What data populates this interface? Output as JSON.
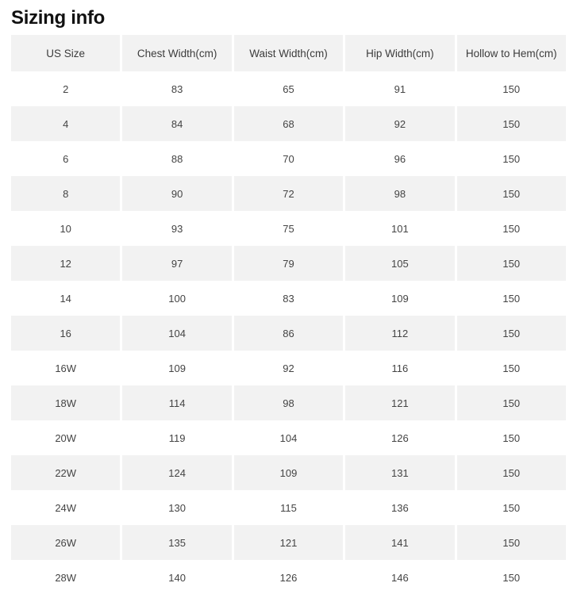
{
  "page": {
    "title": "Sizing info"
  },
  "colors": {
    "stripe_bg": "#f2f2f2",
    "page_bg": "#ffffff",
    "text": "#444444",
    "title": "#111111"
  },
  "table": {
    "columns": [
      "US Size",
      "Chest Width(cm)",
      "Waist Width(cm)",
      "Hip Width(cm)",
      "Hollow to Hem(cm)"
    ],
    "rows": [
      [
        "2",
        "83",
        "65",
        "91",
        "150"
      ],
      [
        "4",
        "84",
        "68",
        "92",
        "150"
      ],
      [
        "6",
        "88",
        "70",
        "96",
        "150"
      ],
      [
        "8",
        "90",
        "72",
        "98",
        "150"
      ],
      [
        "10",
        "93",
        "75",
        "101",
        "150"
      ],
      [
        "12",
        "97",
        "79",
        "105",
        "150"
      ],
      [
        "14",
        "100",
        "83",
        "109",
        "150"
      ],
      [
        "16",
        "104",
        "86",
        "112",
        "150"
      ],
      [
        "16W",
        "109",
        "92",
        "116",
        "150"
      ],
      [
        "18W",
        "114",
        "98",
        "121",
        "150"
      ],
      [
        "20W",
        "119",
        "104",
        "126",
        "150"
      ],
      [
        "22W",
        "124",
        "109",
        "131",
        "150"
      ],
      [
        "24W",
        "130",
        "115",
        "136",
        "150"
      ],
      [
        "26W",
        "135",
        "121",
        "141",
        "150"
      ],
      [
        "28W",
        "140",
        "126",
        "146",
        "150"
      ]
    ]
  }
}
